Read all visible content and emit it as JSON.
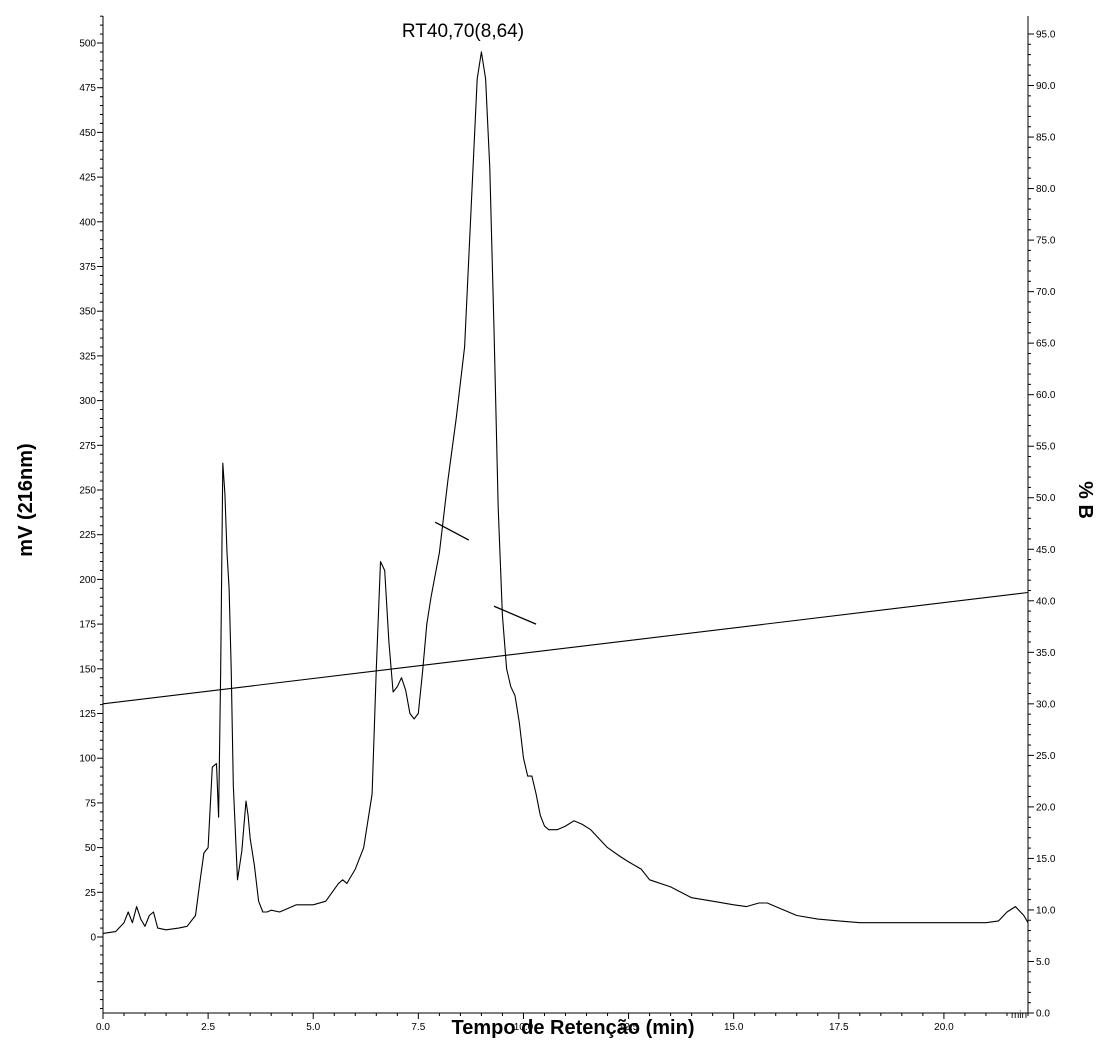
{
  "chart_data": {
    "type": "line",
    "title": "",
    "xlabel": "Tempo de Retenção (min)",
    "ylabel_left": "mV (216nm)",
    "ylabel_right": "% B",
    "x_unit_label": "min",
    "xlim": [
      0,
      22.0
    ],
    "ylim_left": [
      -50,
      520
    ],
    "ylim_right": [
      0,
      95
    ],
    "grid": false,
    "x_ticks": [
      0.0,
      2.5,
      5.0,
      7.5,
      10.0,
      12.5,
      15.0,
      17.5,
      20.0
    ],
    "x_tick_labels": [
      "0.0",
      "2.5",
      "5.0",
      "7.5",
      "10.0",
      "12.5",
      "15.0",
      "17.5",
      "20.0"
    ],
    "y_left_ticks": [
      0,
      25,
      50,
      75,
      100,
      125,
      150,
      175,
      200,
      225,
      250,
      275,
      300,
      325,
      350,
      375,
      400,
      425,
      450,
      475,
      500
    ],
    "y_left_tick_labels": [
      "0",
      "25",
      "50",
      "75",
      "100",
      "125",
      "150",
      "175",
      "200",
      "225",
      "250",
      "275",
      "300",
      "325",
      "350",
      "375",
      "400",
      "425",
      "450",
      "475",
      "500"
    ],
    "y_right_ticks": [
      0,
      5,
      10,
      15,
      20,
      25,
      30,
      35,
      40,
      45,
      50,
      55,
      60,
      65,
      70,
      75,
      80,
      85,
      90,
      95
    ],
    "y_right_tick_labels": [
      "0.0",
      "5.0",
      "10.0",
      "15.0",
      "20.0",
      "25.0",
      "30.0",
      "35.0",
      "40.0",
      "45.0",
      "50.0",
      "55.0",
      "60.0",
      "65.0",
      "70.0",
      "75.0",
      "80.0",
      "85.0",
      "90.0",
      "95.0"
    ],
    "series": [
      {
        "axis": "left",
        "x": [
          0.0,
          0.3,
          0.5,
          0.6,
          0.7,
          0.8,
          0.9,
          1.0,
          1.1,
          1.2,
          1.3,
          1.5,
          1.8,
          2.0,
          2.2,
          2.3,
          2.4,
          2.5,
          2.6,
          2.7,
          2.75,
          2.8,
          2.85,
          2.9,
          2.95,
          3.0,
          3.05,
          3.1,
          3.2,
          3.3,
          3.4,
          3.45,
          3.5,
          3.6,
          3.7,
          3.8,
          3.9,
          4.0,
          4.2,
          4.4,
          4.6,
          4.8,
          5.0,
          5.3,
          5.6,
          5.7,
          5.8,
          6.0,
          6.2,
          6.4,
          6.5,
          6.6,
          6.7,
          6.8,
          6.9,
          7.0,
          7.1,
          7.2,
          7.3,
          7.4,
          7.5,
          7.6,
          7.7,
          7.8,
          8.0,
          8.2,
          8.4,
          8.6,
          8.7,
          8.8,
          8.9,
          9.0,
          9.1,
          9.2,
          9.3,
          9.4,
          9.5,
          9.6,
          9.7,
          9.8,
          9.9,
          10.0,
          10.1,
          10.2,
          10.3,
          10.4,
          10.5,
          10.6,
          10.8,
          11.0,
          11.2,
          11.4,
          11.6,
          11.8,
          12.0,
          12.3,
          12.5,
          12.8,
          13.0,
          13.5,
          14.0,
          14.5,
          15.0,
          15.3,
          15.6,
          15.8,
          16.0,
          16.5,
          17.0,
          17.5,
          18.0,
          18.5,
          19.0,
          19.5,
          20.0,
          20.5,
          21.0,
          21.3,
          21.5,
          21.7,
          21.9,
          22.0
        ],
        "y": [
          2,
          3,
          8,
          14,
          8,
          17,
          10,
          6,
          12,
          14,
          5,
          4,
          5,
          6,
          12,
          30,
          47,
          50,
          95,
          97,
          67,
          150,
          265,
          248,
          215,
          195,
          150,
          85,
          32,
          48,
          76,
          68,
          55,
          40,
          20,
          14,
          14,
          15,
          14,
          16,
          18,
          18,
          18,
          20,
          30,
          32,
          30,
          38,
          50,
          80,
          150,
          210,
          205,
          165,
          137,
          140,
          145,
          138,
          125,
          122,
          125,
          148,
          175,
          190,
          215,
          255,
          290,
          330,
          380,
          430,
          480,
          495,
          480,
          430,
          340,
          240,
          180,
          150,
          140,
          135,
          120,
          100,
          90,
          90,
          80,
          68,
          62,
          60,
          60,
          62,
          65,
          63,
          60,
          55,
          50,
          45,
          42,
          38,
          32,
          28,
          22,
          20,
          18,
          17,
          19,
          19,
          17,
          12,
          10,
          9,
          8,
          8,
          8,
          8,
          8,
          8,
          8,
          9,
          14,
          17,
          12,
          8
        ]
      },
      {
        "axis": "right",
        "x": [
          0.0,
          22.0
        ],
        "y": [
          30.0,
          40.8
        ]
      }
    ],
    "annotations": [
      {
        "text": "RT40,70(8,64)"
      }
    ]
  }
}
